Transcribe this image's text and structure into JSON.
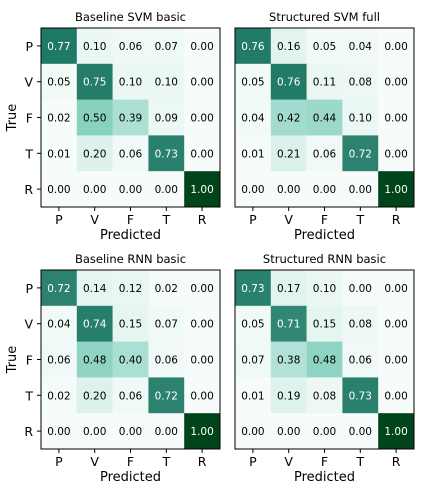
{
  "chart_data": [
    {
      "type": "heatmap",
      "title": "Baseline SVM basic",
      "xlabel": "Predicted",
      "ylabel": "True",
      "x_categories": [
        "P",
        "V",
        "F",
        "T",
        "R"
      ],
      "y_categories": [
        "P",
        "V",
        "F",
        "T",
        "R"
      ],
      "values": [
        [
          0.77,
          0.1,
          0.06,
          0.07,
          0.0
        ],
        [
          0.05,
          0.75,
          0.1,
          0.1,
          0.0
        ],
        [
          0.02,
          0.5,
          0.39,
          0.09,
          0.0
        ],
        [
          0.01,
          0.2,
          0.06,
          0.73,
          0.0
        ],
        [
          0.0,
          0.0,
          0.0,
          0.0,
          1.0
        ]
      ],
      "value_range": [
        0,
        1
      ]
    },
    {
      "type": "heatmap",
      "title": "Structured SVM full",
      "xlabel": "Predicted",
      "ylabel": "",
      "x_categories": [
        "P",
        "V",
        "F",
        "T",
        "R"
      ],
      "y_categories": [],
      "values": [
        [
          0.76,
          0.16,
          0.05,
          0.04,
          0.0
        ],
        [
          0.05,
          0.76,
          0.11,
          0.08,
          0.0
        ],
        [
          0.04,
          0.42,
          0.44,
          0.1,
          0.0
        ],
        [
          0.01,
          0.21,
          0.06,
          0.72,
          0.0
        ],
        [
          0.0,
          0.0,
          0.0,
          0.0,
          1.0
        ]
      ],
      "value_range": [
        0,
        1
      ]
    },
    {
      "type": "heatmap",
      "title": "Baseline RNN basic",
      "xlabel": "Predicted",
      "ylabel": "True",
      "x_categories": [
        "P",
        "V",
        "F",
        "T",
        "R"
      ],
      "y_categories": [
        "P",
        "V",
        "F",
        "T",
        "R"
      ],
      "values": [
        [
          0.72,
          0.14,
          0.12,
          0.02,
          0.0
        ],
        [
          0.04,
          0.74,
          0.15,
          0.07,
          0.0
        ],
        [
          0.06,
          0.48,
          0.4,
          0.06,
          0.0
        ],
        [
          0.02,
          0.2,
          0.06,
          0.72,
          0.0
        ],
        [
          0.0,
          0.0,
          0.0,
          0.0,
          1.0
        ]
      ],
      "value_range": [
        0,
        1
      ]
    },
    {
      "type": "heatmap",
      "title": "Structured RNN basic",
      "xlabel": "Predicted",
      "ylabel": "",
      "x_categories": [
        "P",
        "V",
        "F",
        "T",
        "R"
      ],
      "y_categories": [],
      "values": [
        [
          0.73,
          0.17,
          0.1,
          0.0,
          0.0
        ],
        [
          0.05,
          0.71,
          0.15,
          0.08,
          0.0
        ],
        [
          0.07,
          0.38,
          0.48,
          0.06,
          0.0
        ],
        [
          0.01,
          0.19,
          0.08,
          0.73,
          0.0
        ],
        [
          0.0,
          0.0,
          0.0,
          0.0,
          1.0
        ]
      ],
      "value_range": [
        0,
        1
      ]
    }
  ],
  "colors": {
    "low": "#f7fcfb",
    "mid_low": "#ccece6",
    "mid": "#66c2a4",
    "mid_high": "#238b45",
    "high": "#00441b"
  }
}
